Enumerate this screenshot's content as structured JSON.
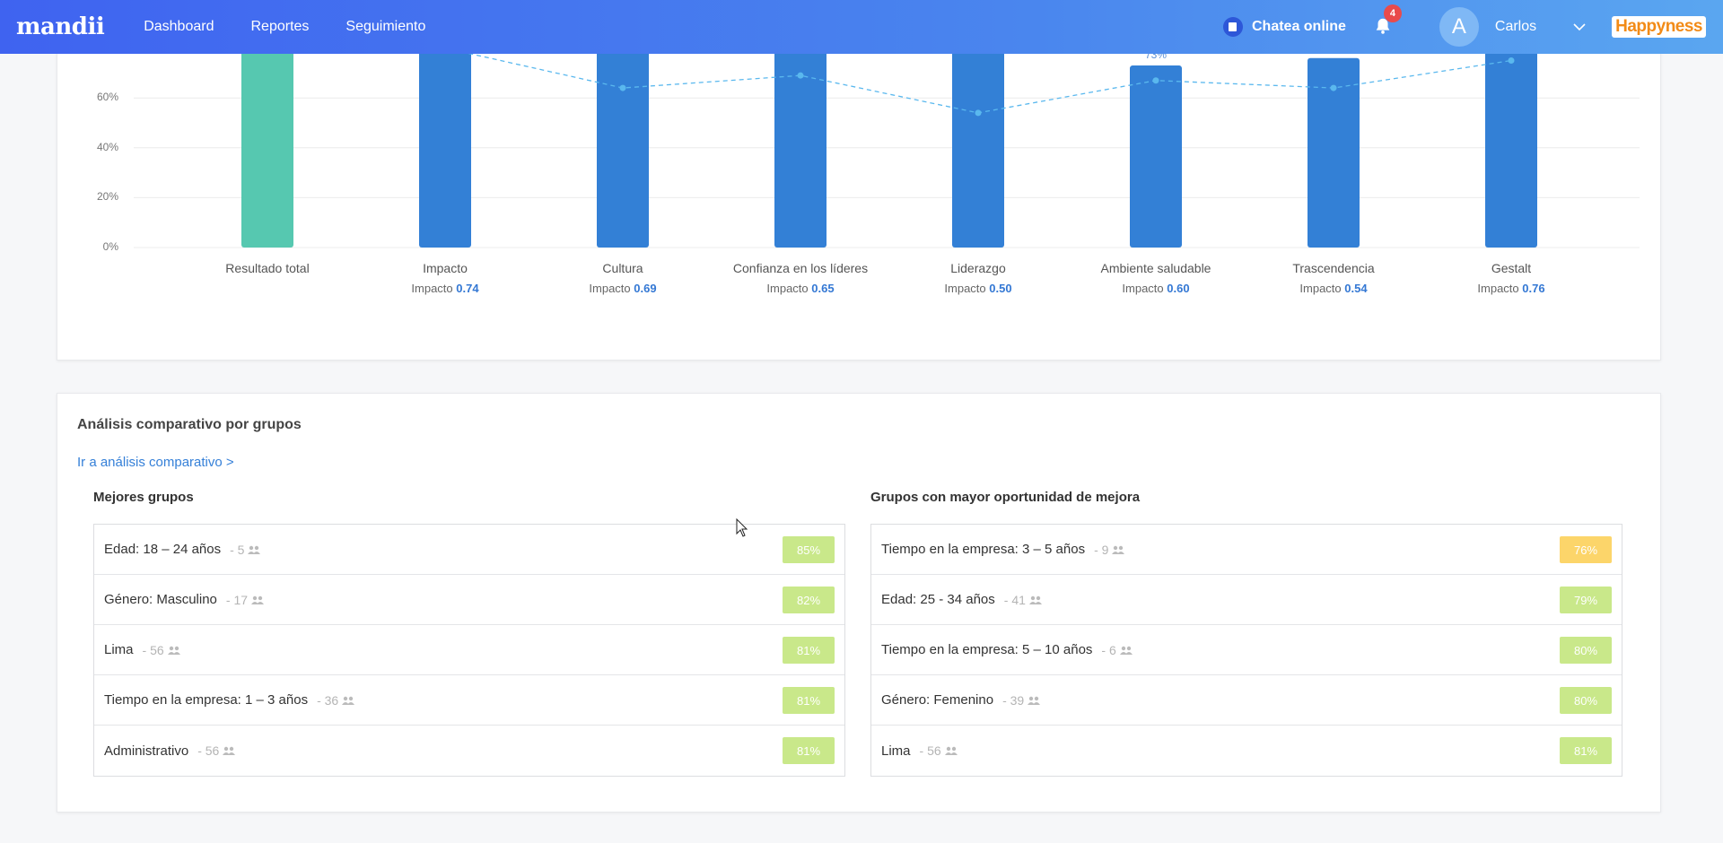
{
  "header": {
    "logo": "mandii",
    "nav": [
      "Dashboard",
      "Reportes",
      "Seguimiento"
    ],
    "chat_label": "Chatea online",
    "notifications": "4",
    "avatar_letter": "A",
    "username": "Carlos",
    "brand": "Happyness"
  },
  "chart_data": {
    "type": "bar",
    "categories": [
      "Resultado total",
      "Impacto",
      "Cultura",
      "Confianza en los líderes",
      "Liderazgo",
      "Ambiente saludable",
      "Trascendencia",
      "Gestalt"
    ],
    "impact_prefix": "Impacto",
    "impacts": [
      "",
      "0.74",
      "0.69",
      "0.65",
      "0.50",
      "0.60",
      "0.54",
      "0.76"
    ],
    "values": [
      82,
      82,
      82,
      82,
      82,
      73,
      76,
      82
    ],
    "visible_value_label": "73%",
    "visible_value_label_index": 5,
    "line_values": [
      82,
      80,
      64,
      69,
      54,
      67,
      64,
      75
    ],
    "yticks": [
      "0%",
      "20%",
      "40%",
      "60%"
    ],
    "ylim": [
      0,
      100
    ],
    "bar_colors": [
      "#56c8b0",
      "#3380d6",
      "#3380d6",
      "#3380d6",
      "#3380d6",
      "#3380d6",
      "#3380d6",
      "#3380d6"
    ],
    "line_color": "#5ab8ee",
    "grid": true
  },
  "comparative": {
    "title": "Análisis comparativo por grupos",
    "link": "Ir a análisis comparativo >",
    "best": {
      "title": "Mejores grupos",
      "rows": [
        {
          "name": "Edad: 18 – 24 años",
          "count": "- 5",
          "pct": "85%",
          "color": "#c9e88a"
        },
        {
          "name": "Género: Masculino",
          "count": "- 17",
          "pct": "82%",
          "color": "#c9e88a"
        },
        {
          "name": "Lima",
          "count": "- 56",
          "pct": "81%",
          "color": "#c9e88a"
        },
        {
          "name": "Tiempo en la empresa: 1 – 3 años",
          "count": "- 36",
          "pct": "81%",
          "color": "#c9e88a"
        },
        {
          "name": "Administrativo",
          "count": "- 56",
          "pct": "81%",
          "color": "#c9e88a"
        }
      ]
    },
    "worst": {
      "title": "Grupos con mayor oportunidad de mejora",
      "rows": [
        {
          "name": "Tiempo en la empresa: 3 – 5 años",
          "count": "- 9",
          "pct": "76%",
          "color": "#fcd56a"
        },
        {
          "name": "Edad: 25 - 34 años",
          "count": "- 41",
          "pct": "79%",
          "color": "#c9e88a"
        },
        {
          "name": "Tiempo en la empresa: 5 – 10 años",
          "count": "- 6",
          "pct": "80%",
          "color": "#c9e88a"
        },
        {
          "name": "Género: Femenino",
          "count": "- 39",
          "pct": "80%",
          "color": "#c9e88a"
        },
        {
          "name": "Lima",
          "count": "- 56",
          "pct": "81%",
          "color": "#c9e88a"
        }
      ]
    }
  }
}
